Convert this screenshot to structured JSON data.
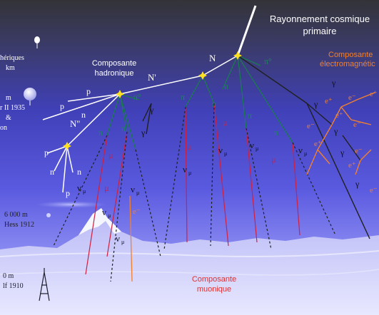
{
  "title": {
    "line1": "Rayonnement cosmique",
    "line2": "primaire"
  },
  "components": {
    "hadronic": {
      "line1": "Composante",
      "line2": "hadronique"
    },
    "electromagnetic": {
      "line1": "Composante",
      "line2": "électromagnétic"
    },
    "muonic": {
      "line1": "Composante",
      "line2": "muonique"
    }
  },
  "left_notes": {
    "balloon_top_line1": "hériques",
    "balloon_top_line2": "km",
    "balloon_mid_line1": "m",
    "balloon_mid_line2": "r II 1935",
    "balloon_mid_line3": "&",
    "balloon_mid_line4": "on",
    "hess_line1": "6 000 m",
    "hess_line2": "Hess 1912",
    "eiffel_line1": "0 m",
    "eiffel_line2": "lf 1910"
  },
  "particles": {
    "nucleon": "N",
    "nucleon_prime": "N'",
    "nucleon_double": "N''",
    "proton": "p",
    "neutron": "n",
    "pion_zero": "π°",
    "pion": "π",
    "muon": "μ",
    "electron": "e⁻",
    "positron": "e⁺",
    "gamma": "γ",
    "nu_mu": "ν",
    "nu_sub": "μ"
  },
  "colors": {
    "sky_top": "#3a3a4a",
    "sky_mid": "#4848c0",
    "sky_low": "#7a7af0",
    "ground": "#d8d8ff",
    "hadron_line": "#ffffff",
    "pion_line": "#1a7a50",
    "muon_line": "#d02040",
    "em_orange": "#f08030",
    "neutrino_line": "#202020",
    "label_red": "#e03030",
    "label_orange": "#f08030",
    "vertex_star": "#ffe020"
  }
}
